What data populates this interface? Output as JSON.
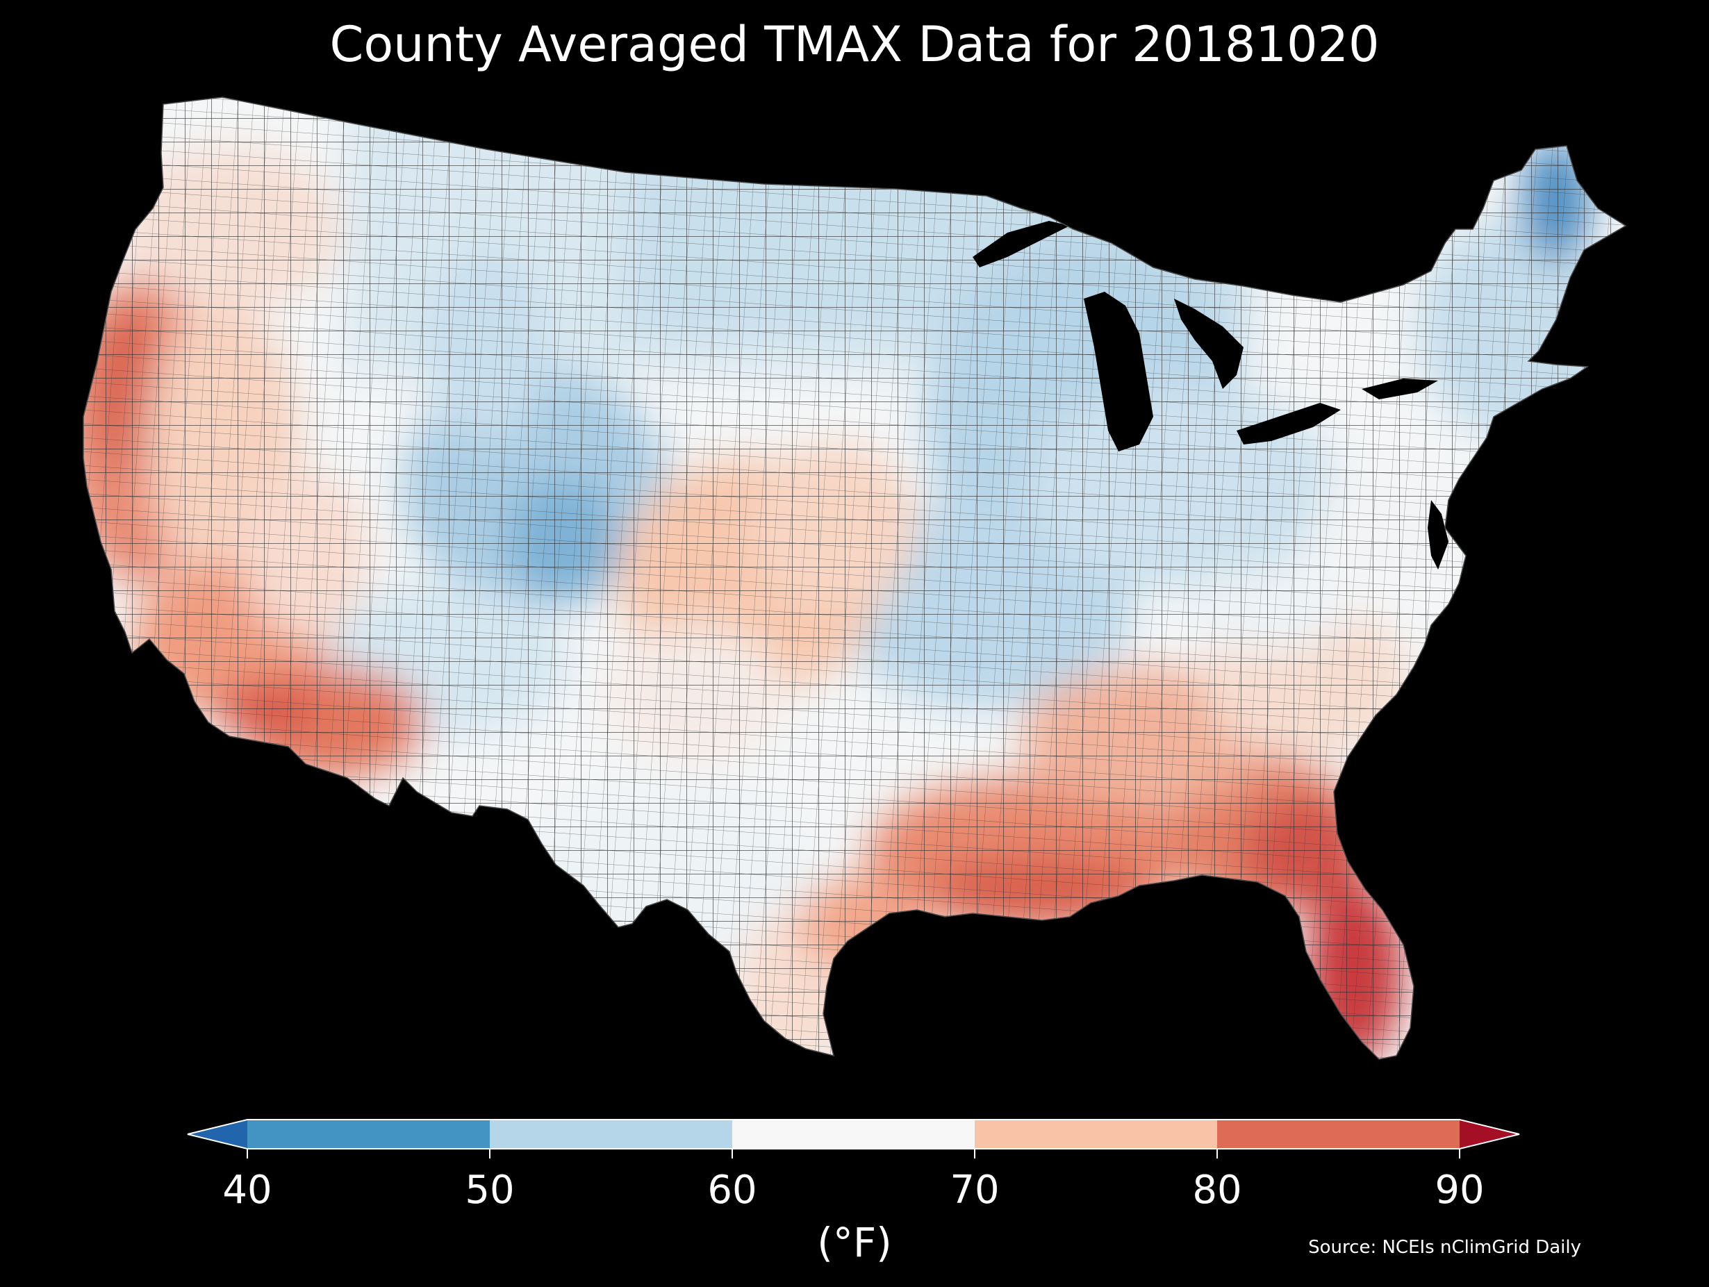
{
  "title": "County Averaged TMAX Data for 20181020",
  "colorbar": {
    "unit_label": "(°F)",
    "ticks": [
      "40",
      "50",
      "60",
      "70",
      "80",
      "90"
    ],
    "bins": [
      {
        "range": "<40",
        "color": "#2166ac"
      },
      {
        "range": "40-50",
        "color": "#4393c3"
      },
      {
        "range": "50-60",
        "color": "#b4d6e8"
      },
      {
        "range": "60-70",
        "color": "#f7f7f7"
      },
      {
        "range": "70-80",
        "color": "#f8c3a6"
      },
      {
        "range": "80-90",
        "color": "#dd6b56"
      },
      {
        "range": ">90",
        "color": "#a50f25"
      }
    ]
  },
  "source": "Source: NCEIs nClimGrid Daily",
  "map": {
    "region": "Contiguous United States, county level",
    "variable": "TMAX",
    "date": "20181020",
    "border_color": "#333333",
    "background": "#000000"
  }
}
